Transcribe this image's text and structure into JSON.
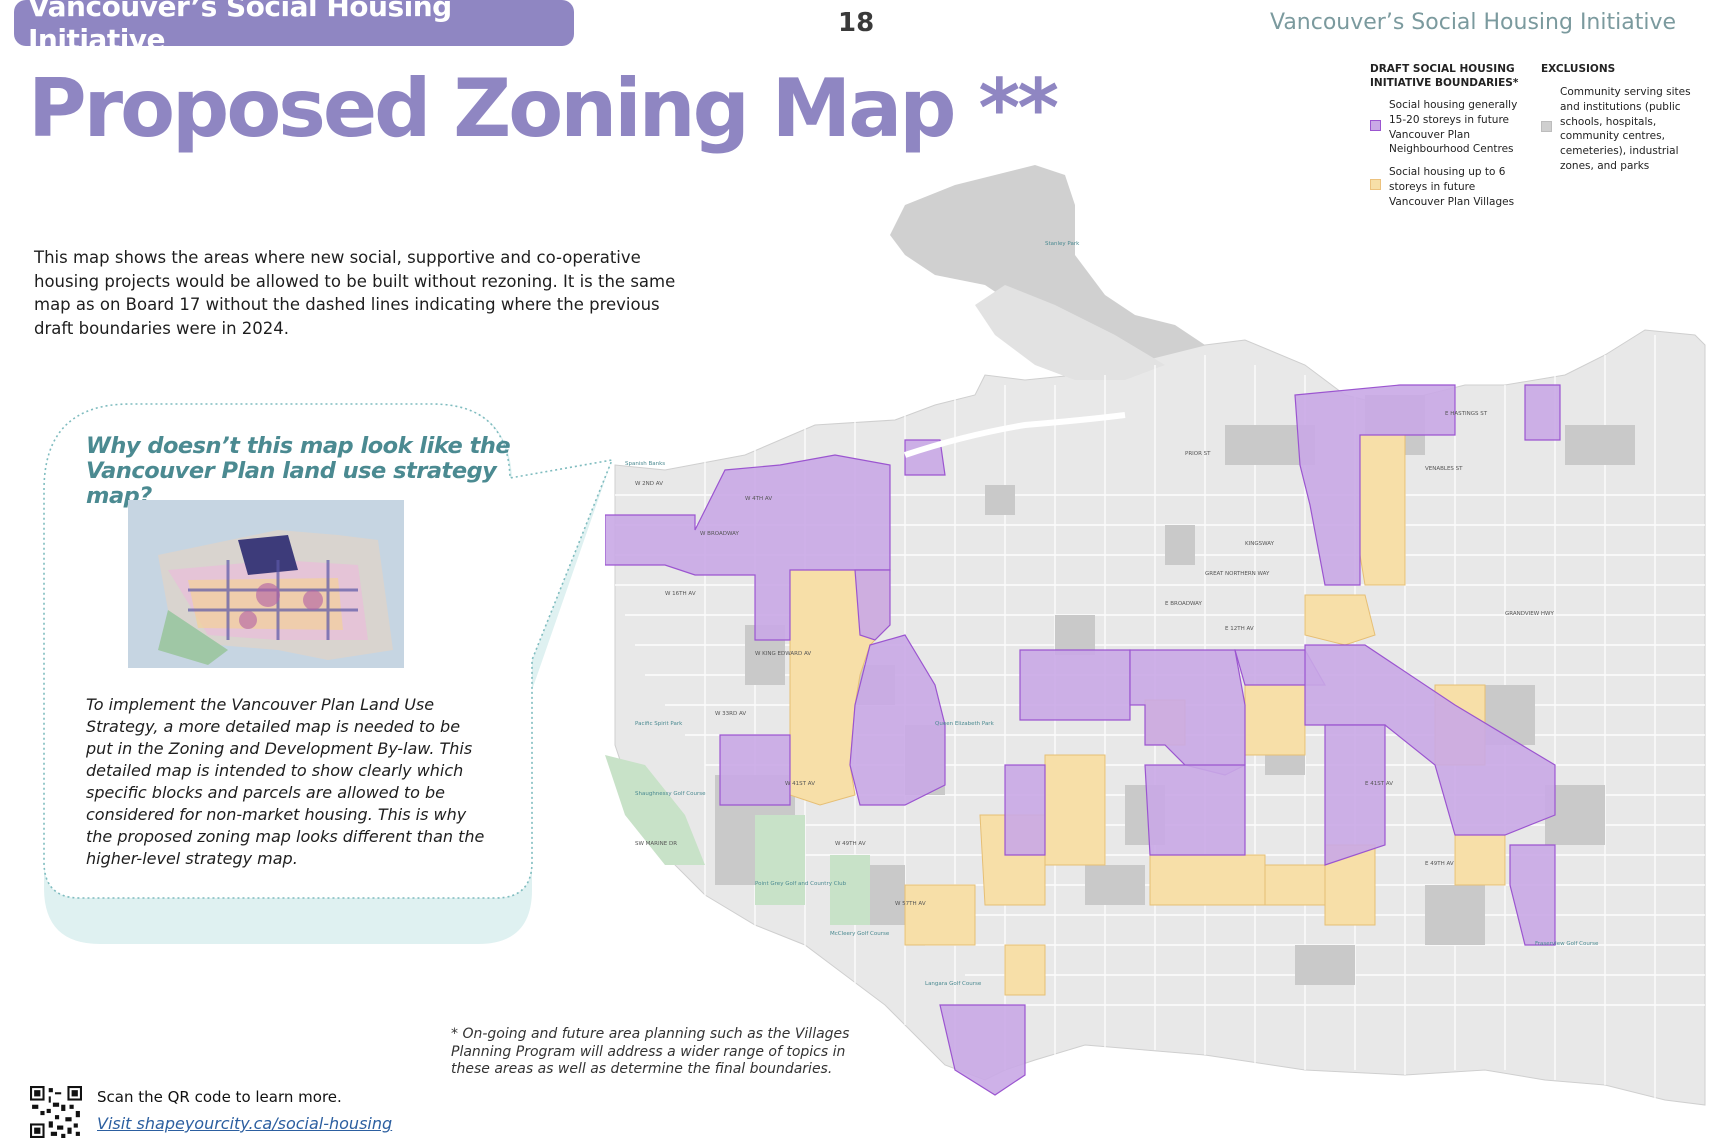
{
  "header": {
    "left_title": "Vancouver’s Social Housing Initiative",
    "page_number": "18",
    "right_title": "Vancouver’s Social Housing Initiative"
  },
  "main_title": "Proposed Zoning Map **",
  "intro_text": "This map shows the areas where new social, supportive and co-operative housing projects would be allowed to be built without rezoning. It is the same map as on Board 17 without the dashed lines indicating where the previous draft boundaries were in 2024.",
  "legend": {
    "boundaries_heading": "DRAFT SOCIAL HOUSING INITIATIVE BOUNDARIES*",
    "boundaries_items": [
      {
        "label": "Social housing generally 15-20 storeys in future Vancouver Plan Neighbourhood Centres",
        "color": "#c9a9e6"
      },
      {
        "label": "Social housing up to 6 storeys in future Vancouver Plan Villages",
        "color": "#f7dfa8"
      }
    ],
    "exclusions_heading": "EXCLUSIONS",
    "exclusions_items": [
      {
        "label": "Community serving sites and institutions (public schools, hospitals, community centres, cemeteries), industrial zones, and parks",
        "color": "#cfcfcf"
      }
    ]
  },
  "callout": {
    "question": "Why doesn’t this map look like the Vancouver Plan land use strategy map?",
    "body": "To implement the Vancouver Plan Land Use Strategy, a more detailed map is needed to be put in the Zoning and Development By-law. This detailed map is intended to show clearly which specific blocks and parcels are allowed to be considered for non-market housing. This is why the proposed zoning map looks different than the higher-level strategy map."
  },
  "footnote": "* On-going and future area planning such as the Villages Planning Program will address a wider range of topics in these areas as well as determine the final boundaries.",
  "footer": {
    "scan_text": "Scan the QR code to learn more.",
    "link_text": "Visit shapeyourcity.ca/social-housing"
  },
  "map": {
    "street_labels": [
      "W 4TH AV",
      "W BROADWAY",
      "W 16TH AV",
      "W KING EDWARD AV",
      "W 33RD AV",
      "W 41ST AV",
      "W 49TH AV",
      "W 57TH AV",
      "E BROADWAY",
      "E 12TH AV",
      "E 41ST AV",
      "E 49TH AV",
      "GRANDVIEW HWY",
      "E HASTINGS ST",
      "W 2ND AV",
      "SW MARINE DR",
      "KINGSWAY",
      "PRIOR ST",
      "GREAT NORTHERN WAY",
      "VENABLES ST"
    ],
    "park_labels": [
      "Stanley Park",
      "Spanish Banks",
      "Pacific Spirit Park",
      "Queen Elizabeth Park",
      "Shaughnessy Golf Course",
      "Fraserview Golf Course",
      "Point Grey Golf and Country Club",
      "McCleery Golf Course",
      "Langara Golf Course"
    ],
    "colors": {
      "purple_fill": "#c9a9e6",
      "purple_stroke": "#9b55d0",
      "orange_fill": "#f7dfa8",
      "exclusion_grey": "#cfcfcf",
      "land": "#ececec",
      "street": "#ffffff",
      "accent_purple": "#8f86c2",
      "accent_teal": "#4b8a91"
    }
  }
}
